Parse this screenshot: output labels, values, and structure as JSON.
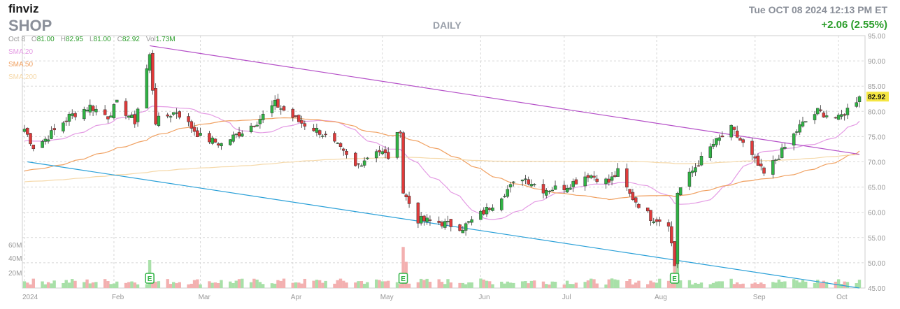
{
  "header": {
    "logo": "finviz",
    "ticker": "SHOP",
    "period": "DAILY",
    "datetime": "Tue OCT 08 2024 12:13 PM ET",
    "change": "+2.06 (2.55%)"
  },
  "ohlc": {
    "date": "Oct 8",
    "open_label": "O",
    "open": "81.00",
    "high_label": "H",
    "high": "82.95",
    "low_label": "L",
    "low": "81.00",
    "close_label": "C",
    "close": "82.92",
    "volume_label": "Vol",
    "volume": "1.73M"
  },
  "legend": [
    {
      "label": "SMA 20",
      "color": "#e49be4"
    },
    {
      "label": "SMA 50",
      "color": "#f0a060"
    },
    {
      "label": "SMA 200",
      "color": "#f5d8a8"
    }
  ],
  "colors": {
    "up": "#2fb344",
    "down": "#e03a3a",
    "up_vol": "#a8e0a8",
    "down_vol": "#f3b0b0",
    "upper_trend": "#b550c8",
    "lower_trend": "#2aa0d8",
    "last_price_bg": "#f5e642"
  },
  "chart_data": {
    "type": "candlestick",
    "y_axis": {
      "min": 45,
      "max": 95,
      "ticks": [
        "95.00",
        "90.00",
        "85.00",
        "80.00",
        "75.00",
        "70.00",
        "65.00",
        "60.00",
        "55.00",
        "50.00",
        "45.00"
      ],
      "position": "right"
    },
    "x_axis": {
      "ticks": [
        "2024",
        "Feb",
        "Mar",
        "Apr",
        "May",
        "Jun",
        "Jul",
        "Aug",
        "Sep",
        "Oct"
      ]
    },
    "volume_axis": {
      "ticks": [
        "60M",
        "40M",
        "20M"
      ]
    },
    "last_price": "82.92",
    "earnings_markers": [
      "E",
      "E",
      "E"
    ],
    "trendlines": [
      {
        "name": "upper",
        "from": {
          "date": "2024-02-13",
          "price": 93.0
        },
        "to": {
          "date": "2024-10-08",
          "price": 71.5
        }
      },
      {
        "name": "lower",
        "from": {
          "date": "2024-01-03",
          "price": 70.0
        },
        "to": {
          "date": "2024-10-08",
          "price": 45.0
        }
      }
    ],
    "anchors": [
      {
        "date": "2024-01-02",
        "price": 76.5
      },
      {
        "date": "2024-01-05",
        "price": 73.0
      },
      {
        "date": "2024-01-09",
        "price": 74.5
      },
      {
        "date": "2024-01-17",
        "price": 79.0
      },
      {
        "date": "2024-01-24",
        "price": 81.0
      },
      {
        "date": "2024-01-30",
        "price": 79.0
      },
      {
        "date": "2024-02-02",
        "price": 81.5
      },
      {
        "date": "2024-02-08",
        "price": 78.0
      },
      {
        "date": "2024-02-13",
        "price": 91.0
      },
      {
        "date": "2024-02-15",
        "price": 78.0
      },
      {
        "date": "2024-02-22",
        "price": 80.0
      },
      {
        "date": "2024-03-01",
        "price": 75.0
      },
      {
        "date": "2024-03-08",
        "price": 73.5
      },
      {
        "date": "2024-03-15",
        "price": 76.0
      },
      {
        "date": "2024-03-20",
        "price": 78.0
      },
      {
        "date": "2024-03-26",
        "price": 81.5
      },
      {
        "date": "2024-04-03",
        "price": 78.0
      },
      {
        "date": "2024-04-10",
        "price": 76.0
      },
      {
        "date": "2024-04-16",
        "price": 73.0
      },
      {
        "date": "2024-04-22",
        "price": 69.0
      },
      {
        "date": "2024-04-29",
        "price": 72.5
      },
      {
        "date": "2024-05-03",
        "price": 71.0
      },
      {
        "date": "2024-05-07",
        "price": 76.5
      },
      {
        "date": "2024-05-08",
        "price": 64.0
      },
      {
        "date": "2024-05-13",
        "price": 58.5
      },
      {
        "date": "2024-05-20",
        "price": 58.0
      },
      {
        "date": "2024-05-28",
        "price": 57.0
      },
      {
        "date": "2024-06-05",
        "price": 60.5
      },
      {
        "date": "2024-06-12",
        "price": 64.5
      },
      {
        "date": "2024-06-17",
        "price": 67.0
      },
      {
        "date": "2024-06-24",
        "price": 64.5
      },
      {
        "date": "2024-07-01",
        "price": 65.0
      },
      {
        "date": "2024-07-09",
        "price": 67.5
      },
      {
        "date": "2024-07-16",
        "price": 66.0
      },
      {
        "date": "2024-07-19",
        "price": 68.0
      },
      {
        "date": "2024-07-23",
        "price": 63.5
      },
      {
        "date": "2024-07-30",
        "price": 59.0
      },
      {
        "date": "2024-08-05",
        "price": 58.0
      },
      {
        "date": "2024-08-07",
        "price": 49.5
      },
      {
        "date": "2024-08-08",
        "price": 64.0
      },
      {
        "date": "2024-08-14",
        "price": 69.0
      },
      {
        "date": "2024-08-20",
        "price": 73.5
      },
      {
        "date": "2024-08-26",
        "price": 76.5
      },
      {
        "date": "2024-08-30",
        "price": 73.5
      },
      {
        "date": "2024-09-06",
        "price": 67.5
      },
      {
        "date": "2024-09-12",
        "price": 72.0
      },
      {
        "date": "2024-09-18",
        "price": 77.0
      },
      {
        "date": "2024-09-24",
        "price": 80.0
      },
      {
        "date": "2024-10-01",
        "price": 78.5
      },
      {
        "date": "2024-10-08",
        "price": 82.9
      }
    ],
    "volume_spikes": [
      {
        "date": "2024-02-13",
        "value": 32
      },
      {
        "date": "2024-05-08",
        "value": 47
      },
      {
        "date": "2024-05-09",
        "value": 30
      },
      {
        "date": "2024-08-07",
        "value": 48
      },
      {
        "date": "2024-08-08",
        "value": 30
      }
    ]
  }
}
